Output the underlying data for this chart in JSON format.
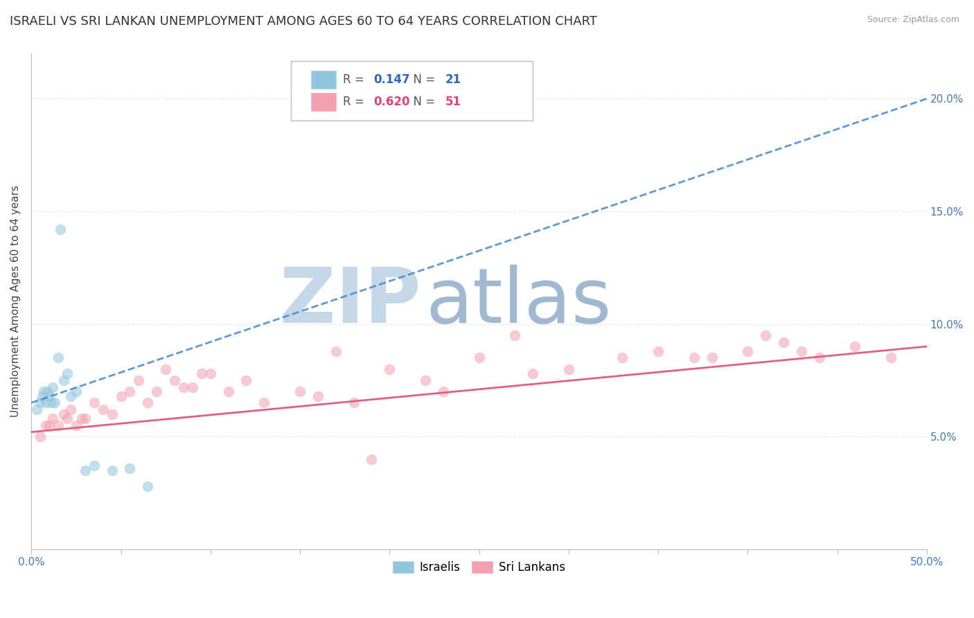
{
  "title": "ISRAELI VS SRI LANKAN UNEMPLOYMENT AMONG AGES 60 TO 64 YEARS CORRELATION CHART",
  "source": "Source: ZipAtlas.com",
  "ylabel": "Unemployment Among Ages 60 to 64 years",
  "xlim": [
    0,
    50
  ],
  "ylim": [
    0,
    22
  ],
  "y_ticks": [
    5,
    10,
    15,
    20
  ],
  "y_tick_labels": [
    "5.0%",
    "10.0%",
    "15.0%",
    "20.0%"
  ],
  "israeli_x": [
    0.3,
    0.5,
    0.6,
    0.7,
    0.8,
    0.9,
    1.0,
    1.1,
    1.2,
    1.3,
    1.5,
    1.6,
    1.8,
    2.0,
    2.2,
    2.5,
    3.0,
    3.5,
    4.5,
    5.5,
    6.5
  ],
  "israeli_y": [
    6.2,
    6.5,
    6.8,
    7.0,
    6.5,
    7.0,
    6.8,
    6.5,
    7.2,
    6.5,
    8.5,
    14.2,
    7.5,
    7.8,
    6.8,
    7.0,
    3.5,
    3.7,
    3.5,
    3.6,
    2.8
  ],
  "srilanka_x": [
    0.5,
    0.8,
    1.0,
    1.2,
    1.5,
    1.8,
    2.0,
    2.2,
    2.5,
    2.8,
    3.0,
    3.5,
    4.0,
    4.5,
    5.0,
    5.5,
    6.0,
    6.5,
    7.0,
    7.5,
    8.0,
    8.5,
    9.0,
    9.5,
    10.0,
    11.0,
    12.0,
    13.0,
    15.0,
    16.0,
    17.0,
    18.0,
    19.0,
    20.0,
    22.0,
    23.0,
    25.0,
    27.0,
    28.0,
    30.0,
    33.0,
    35.0,
    37.0,
    38.0,
    40.0,
    41.0,
    42.0,
    43.0,
    44.0,
    46.0,
    48.0
  ],
  "srilanka_y": [
    5.0,
    5.5,
    5.5,
    5.8,
    5.5,
    6.0,
    5.8,
    6.2,
    5.5,
    5.8,
    5.8,
    6.5,
    6.2,
    6.0,
    6.8,
    7.0,
    7.5,
    6.5,
    7.0,
    8.0,
    7.5,
    7.2,
    7.2,
    7.8,
    7.8,
    7.0,
    7.5,
    6.5,
    7.0,
    6.8,
    8.8,
    6.5,
    4.0,
    8.0,
    7.5,
    7.0,
    8.5,
    9.5,
    7.8,
    8.0,
    8.5,
    8.8,
    8.5,
    8.5,
    8.8,
    9.5,
    9.2,
    8.8,
    8.5,
    9.0,
    8.5
  ],
  "israeli_color": "#92C5DE",
  "srilanka_color": "#F4A0B0",
  "israeli_line_color": "#4488CC",
  "srilanka_line_color": "#E06080",
  "R_israeli": 0.147,
  "N_israeli": 21,
  "R_srilanka": 0.62,
  "N_srilanka": 51,
  "watermark_zip": "ZIP",
  "watermark_atlas": "atlas",
  "watermark_color_zip": "#C5D8E8",
  "watermark_color_atlas": "#A0B8D0",
  "background_color": "#FFFFFF",
  "grid_color": "#DDDDDD",
  "marker_size": 110,
  "marker_alpha": 0.55,
  "title_fontsize": 13,
  "axis_label_fontsize": 11,
  "tick_fontsize": 11,
  "legend_fontsize": 12,
  "israeli_trendline_end_y": 20.0,
  "srilanka_trendline_end_y": 9.0,
  "israeli_trendline_start_y": 6.5,
  "srilanka_trendline_start_y": 5.2
}
